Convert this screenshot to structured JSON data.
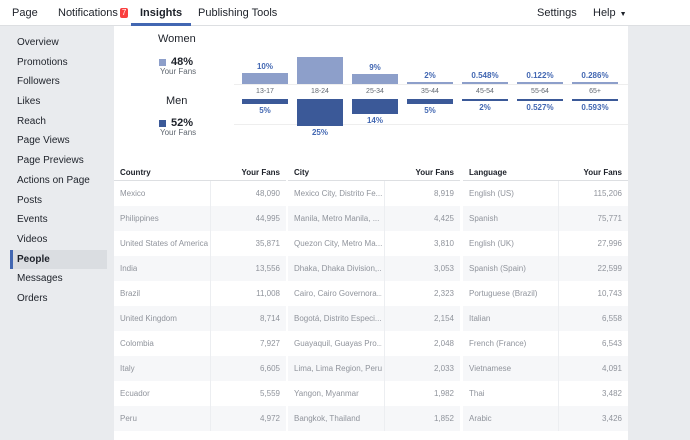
{
  "nav": {
    "page": "Page",
    "notifications": "Notifications",
    "notifications_badge": "7",
    "insights": "Insights",
    "publishing_tools": "Publishing Tools",
    "settings": "Settings",
    "help": "Help"
  },
  "sidebar": {
    "items": [
      {
        "label": "Overview"
      },
      {
        "label": "Promotions"
      },
      {
        "label": "Followers"
      },
      {
        "label": "Likes"
      },
      {
        "label": "Reach"
      },
      {
        "label": "Page Views"
      },
      {
        "label": "Page Previews"
      },
      {
        "label": "Actions on Page"
      },
      {
        "label": "Posts"
      },
      {
        "label": "Events"
      },
      {
        "label": "Videos"
      },
      {
        "label": "People"
      },
      {
        "label": "Messages"
      },
      {
        "label": "Orders"
      }
    ],
    "active_index": 11
  },
  "gender": {
    "women": {
      "title": "Women",
      "pct": "48%",
      "sub": "Your Fans",
      "color": "#8d9fca"
    },
    "men": {
      "title": "Men",
      "pct": "52%",
      "sub": "Your Fans",
      "color": "#3b5998"
    }
  },
  "chart_data": {
    "type": "bar",
    "categories": [
      "13-17",
      "18-24",
      "25-34",
      "35-44",
      "45-54",
      "55-64",
      "65+"
    ],
    "series": [
      {
        "name": "Women",
        "values": [
          10,
          25,
          9,
          2,
          0.548,
          0.122,
          0.286
        ],
        "labels": [
          "10%",
          "",
          "9%",
          "2%",
          "0.548%",
          "0.122%",
          "0.286%"
        ]
      },
      {
        "name": "Men",
        "values": [
          5,
          25,
          14,
          5,
          2,
          0.527,
          0.593
        ],
        "labels": [
          "5%",
          "25%",
          "14%",
          "5%",
          "2%",
          "0.527%",
          "0.593%"
        ]
      }
    ]
  },
  "tables": {
    "country": {
      "headers": [
        "Country",
        "Your Fans"
      ],
      "rows": [
        [
          "Mexico",
          "48,090"
        ],
        [
          "Philippines",
          "44,995"
        ],
        [
          "United States of America",
          "35,871"
        ],
        [
          "India",
          "13,556"
        ],
        [
          "Brazil",
          "11,008"
        ],
        [
          "United Kingdom",
          "8,714"
        ],
        [
          "Colombia",
          "7,927"
        ],
        [
          "Italy",
          "6,605"
        ],
        [
          "Ecuador",
          "5,559"
        ],
        [
          "Peru",
          "4,972"
        ]
      ]
    },
    "city": {
      "headers": [
        "City",
        "Your Fans"
      ],
      "rows": [
        [
          "Mexico City, Distrito Fe...",
          "8,919"
        ],
        [
          "Manila, Metro Manila, ...",
          "4,425"
        ],
        [
          "Quezon City, Metro Ma...",
          "3,810"
        ],
        [
          "Dhaka, Dhaka Division,...",
          "3,053"
        ],
        [
          "Cairo, Cairo Governora...",
          "2,323"
        ],
        [
          "Bogotá, Distrito Especi...",
          "2,154"
        ],
        [
          "Guayaquil, Guayas Pro...",
          "2,048"
        ],
        [
          "Lima, Lima Region, Peru",
          "2,033"
        ],
        [
          "Yangon, Myanmar",
          "1,982"
        ],
        [
          "Bangkok, Thailand",
          "1,852"
        ]
      ]
    },
    "language": {
      "headers": [
        "Language",
        "Your Fans"
      ],
      "rows": [
        [
          "English (US)",
          "115,206"
        ],
        [
          "Spanish",
          "75,771"
        ],
        [
          "English (UK)",
          "27,996"
        ],
        [
          "Spanish (Spain)",
          "22,599"
        ],
        [
          "Portuguese (Brazil)",
          "10,743"
        ],
        [
          "Italian",
          "6,558"
        ],
        [
          "French (France)",
          "6,543"
        ],
        [
          "Vietnamese",
          "4,091"
        ],
        [
          "Thai",
          "3,482"
        ],
        [
          "Arabic",
          "3,426"
        ]
      ]
    }
  }
}
